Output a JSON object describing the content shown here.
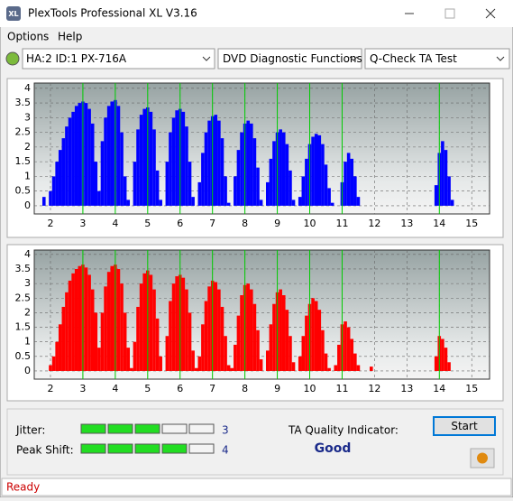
{
  "window": {
    "title": "PlexTools Professional XL V3.16",
    "icon": "XL"
  },
  "menu": [
    "Options",
    "Help"
  ],
  "toolbar": {
    "drive": "HA:2 ID:1  PX-716A",
    "function": "DVD Diagnostic Functions",
    "test": "Q-Check TA Test"
  },
  "chart_data": [
    {
      "type": "bar",
      "color": "#0000ff",
      "marker_color": "#00cc00",
      "grid": true,
      "markers": [
        3,
        4,
        5,
        6,
        7,
        8,
        9,
        10,
        11,
        14
      ],
      "xlim": [
        1.5,
        15.55
      ],
      "ylim": [
        -0.28,
        4.18
      ],
      "xticks": [
        2,
        3,
        4,
        5,
        6,
        7,
        8,
        9,
        10,
        11,
        12,
        13,
        14,
        15
      ],
      "yticks": [
        0,
        0.5,
        1,
        1.5,
        2,
        2.5,
        3,
        3.5,
        4
      ],
      "x": [
        1.8,
        1.9,
        2.0,
        2.1,
        2.2,
        2.3,
        2.4,
        2.5,
        2.6,
        2.7,
        2.8,
        2.9,
        3.0,
        3.1,
        3.2,
        3.3,
        3.4,
        3.5,
        3.6,
        3.7,
        3.8,
        3.9,
        4.0,
        4.1,
        4.2,
        4.3,
        4.4,
        4.5,
        4.6,
        4.7,
        4.8,
        4.9,
        5.0,
        5.1,
        5.2,
        5.3,
        5.4,
        5.5,
        5.6,
        5.7,
        5.8,
        5.9,
        6.0,
        6.1,
        6.2,
        6.3,
        6.4,
        6.5,
        6.6,
        6.7,
        6.8,
        6.9,
        7.0,
        7.1,
        7.2,
        7.3,
        7.4,
        7.5,
        7.6,
        7.7,
        7.8,
        7.9,
        8.0,
        8.1,
        8.2,
        8.3,
        8.4,
        8.5,
        8.6,
        8.7,
        8.8,
        8.9,
        9.0,
        9.1,
        9.2,
        9.3,
        9.4,
        9.5,
        9.6,
        9.7,
        9.8,
        9.9,
        10.0,
        10.1,
        10.2,
        10.3,
        10.4,
        10.5,
        10.6,
        10.7,
        10.8,
        10.9,
        11.0,
        11.1,
        11.2,
        11.3,
        11.4,
        11.5,
        11.6,
        11.7,
        11.8,
        11.9,
        12.0,
        12.1,
        12.2,
        12.3,
        12.4,
        12.5,
        12.6,
        12.7,
        12.8,
        12.9,
        13.0,
        13.1,
        13.2,
        13.3,
        13.4,
        13.5,
        13.6,
        13.7,
        13.8,
        13.9,
        14.0,
        14.1,
        14.2,
        14.3,
        14.4,
        14.5
      ],
      "values": [
        0.3,
        0,
        0.5,
        1.0,
        1.5,
        1.9,
        2.3,
        2.7,
        3.0,
        3.2,
        3.4,
        3.5,
        3.55,
        3.5,
        3.3,
        2.8,
        1.5,
        0.5,
        2.2,
        3.0,
        3.4,
        3.55,
        3.6,
        3.4,
        2.5,
        1.0,
        0.2,
        0,
        1.5,
        2.6,
        3.1,
        3.3,
        3.35,
        3.2,
        2.6,
        1.2,
        0.2,
        0,
        1.5,
        2.5,
        3.0,
        3.25,
        3.3,
        3.2,
        2.7,
        1.5,
        0.3,
        0,
        0.8,
        1.8,
        2.5,
        2.9,
        3.05,
        3.1,
        2.9,
        2.3,
        1.0,
        0.1,
        0,
        1.0,
        1.9,
        2.5,
        2.8,
        2.9,
        2.8,
        2.3,
        1.3,
        0.2,
        0,
        0.8,
        1.6,
        2.2,
        2.5,
        2.6,
        2.5,
        2.1,
        1.2,
        0.2,
        0,
        0.3,
        1.0,
        1.6,
        2.1,
        2.35,
        2.45,
        2.4,
        2.1,
        1.4,
        0.6,
        0.1,
        0,
        0,
        0.8,
        1.5,
        1.8,
        1.6,
        1.0,
        0.3,
        0,
        0,
        0,
        0,
        0,
        0,
        0,
        0,
        0,
        0,
        0,
        0,
        0,
        0,
        0,
        0,
        0,
        0,
        0,
        0,
        0,
        0,
        0,
        0.7,
        1.8,
        2.2,
        1.9,
        1.0,
        0.2,
        0
      ]
    },
    {
      "type": "bar",
      "color": "#ff0000",
      "marker_color": "#00cc00",
      "grid": true,
      "markers": [
        3,
        4,
        5,
        6,
        7,
        8,
        9,
        10,
        11,
        14
      ],
      "xlim": [
        1.5,
        15.55
      ],
      "ylim": [
        -0.28,
        4.15
      ],
      "xticks": [
        2,
        3,
        4,
        5,
        6,
        7,
        8,
        9,
        10,
        11,
        12,
        13,
        14,
        15
      ],
      "yticks": [
        0,
        0.5,
        1,
        1.5,
        2,
        2.5,
        3,
        3.5,
        4
      ],
      "x": [
        1.8,
        1.9,
        2.0,
        2.1,
        2.2,
        2.3,
        2.4,
        2.5,
        2.6,
        2.7,
        2.8,
        2.9,
        3.0,
        3.1,
        3.2,
        3.3,
        3.4,
        3.5,
        3.6,
        3.7,
        3.8,
        3.9,
        4.0,
        4.1,
        4.2,
        4.3,
        4.4,
        4.5,
        4.6,
        4.7,
        4.8,
        4.9,
        5.0,
        5.1,
        5.2,
        5.3,
        5.4,
        5.5,
        5.6,
        5.7,
        5.8,
        5.9,
        6.0,
        6.1,
        6.2,
        6.3,
        6.4,
        6.5,
        6.6,
        6.7,
        6.8,
        6.9,
        7.0,
        7.1,
        7.2,
        7.3,
        7.4,
        7.5,
        7.6,
        7.7,
        7.8,
        7.9,
        8.0,
        8.1,
        8.2,
        8.3,
        8.4,
        8.5,
        8.6,
        8.7,
        8.8,
        8.9,
        9.0,
        9.1,
        9.2,
        9.3,
        9.4,
        9.5,
        9.6,
        9.7,
        9.8,
        9.9,
        10.0,
        10.1,
        10.2,
        10.3,
        10.4,
        10.5,
        10.6,
        10.7,
        10.8,
        10.9,
        11.0,
        11.1,
        11.2,
        11.3,
        11.4,
        11.5,
        11.6,
        11.7,
        11.8,
        11.9,
        12.0,
        12.1,
        12.2,
        12.3,
        12.4,
        12.5,
        12.6,
        12.7,
        12.8,
        12.9,
        13.0,
        13.1,
        13.2,
        13.3,
        13.4,
        13.5,
        13.6,
        13.7,
        13.8,
        13.9,
        14.0,
        14.1,
        14.2,
        14.3,
        14.4,
        14.5
      ],
      "values": [
        0,
        0,
        0.2,
        0.5,
        1.0,
        1.6,
        2.2,
        2.7,
        3.1,
        3.35,
        3.5,
        3.6,
        3.65,
        3.55,
        3.3,
        2.8,
        2.0,
        0.8,
        2.0,
        2.9,
        3.4,
        3.6,
        3.65,
        3.5,
        3.0,
        2.0,
        0.8,
        0.1,
        1.0,
        2.2,
        3.0,
        3.35,
        3.45,
        3.3,
        2.8,
        1.8,
        0.5,
        0,
        1.2,
        2.4,
        3.0,
        3.25,
        3.3,
        3.2,
        2.8,
        2.0,
        0.7,
        0.1,
        0.5,
        1.6,
        2.4,
        2.9,
        3.1,
        3.05,
        2.8,
        2.2,
        1.2,
        0.2,
        0.1,
        0.9,
        1.9,
        2.6,
        2.95,
        3.0,
        2.8,
        2.3,
        1.4,
        0.4,
        0,
        0.7,
        1.6,
        2.3,
        2.7,
        2.8,
        2.6,
        2.1,
        1.2,
        0.3,
        0,
        0.5,
        1.2,
        1.9,
        2.3,
        2.5,
        2.4,
        2.1,
        1.4,
        0.6,
        0.1,
        0,
        0.2,
        0.9,
        1.6,
        1.7,
        1.5,
        1.1,
        0.6,
        0.2,
        0,
        0,
        0,
        0.15,
        0,
        0,
        0,
        0,
        0,
        0,
        0,
        0,
        0,
        0,
        0,
        0,
        0,
        0,
        0,
        0,
        0,
        0,
        0,
        0.5,
        1.2,
        1.1,
        0.8,
        0.3,
        0,
        0
      ]
    }
  ],
  "results": {
    "jitter_label": "Jitter:",
    "jitter": 3,
    "peak_shift_label": "Peak Shift:",
    "peak_shift": 4,
    "meter_max": 5,
    "quality_label": "TA Quality Indicator:",
    "quality": "Good",
    "start": "Start"
  },
  "status": "Ready"
}
